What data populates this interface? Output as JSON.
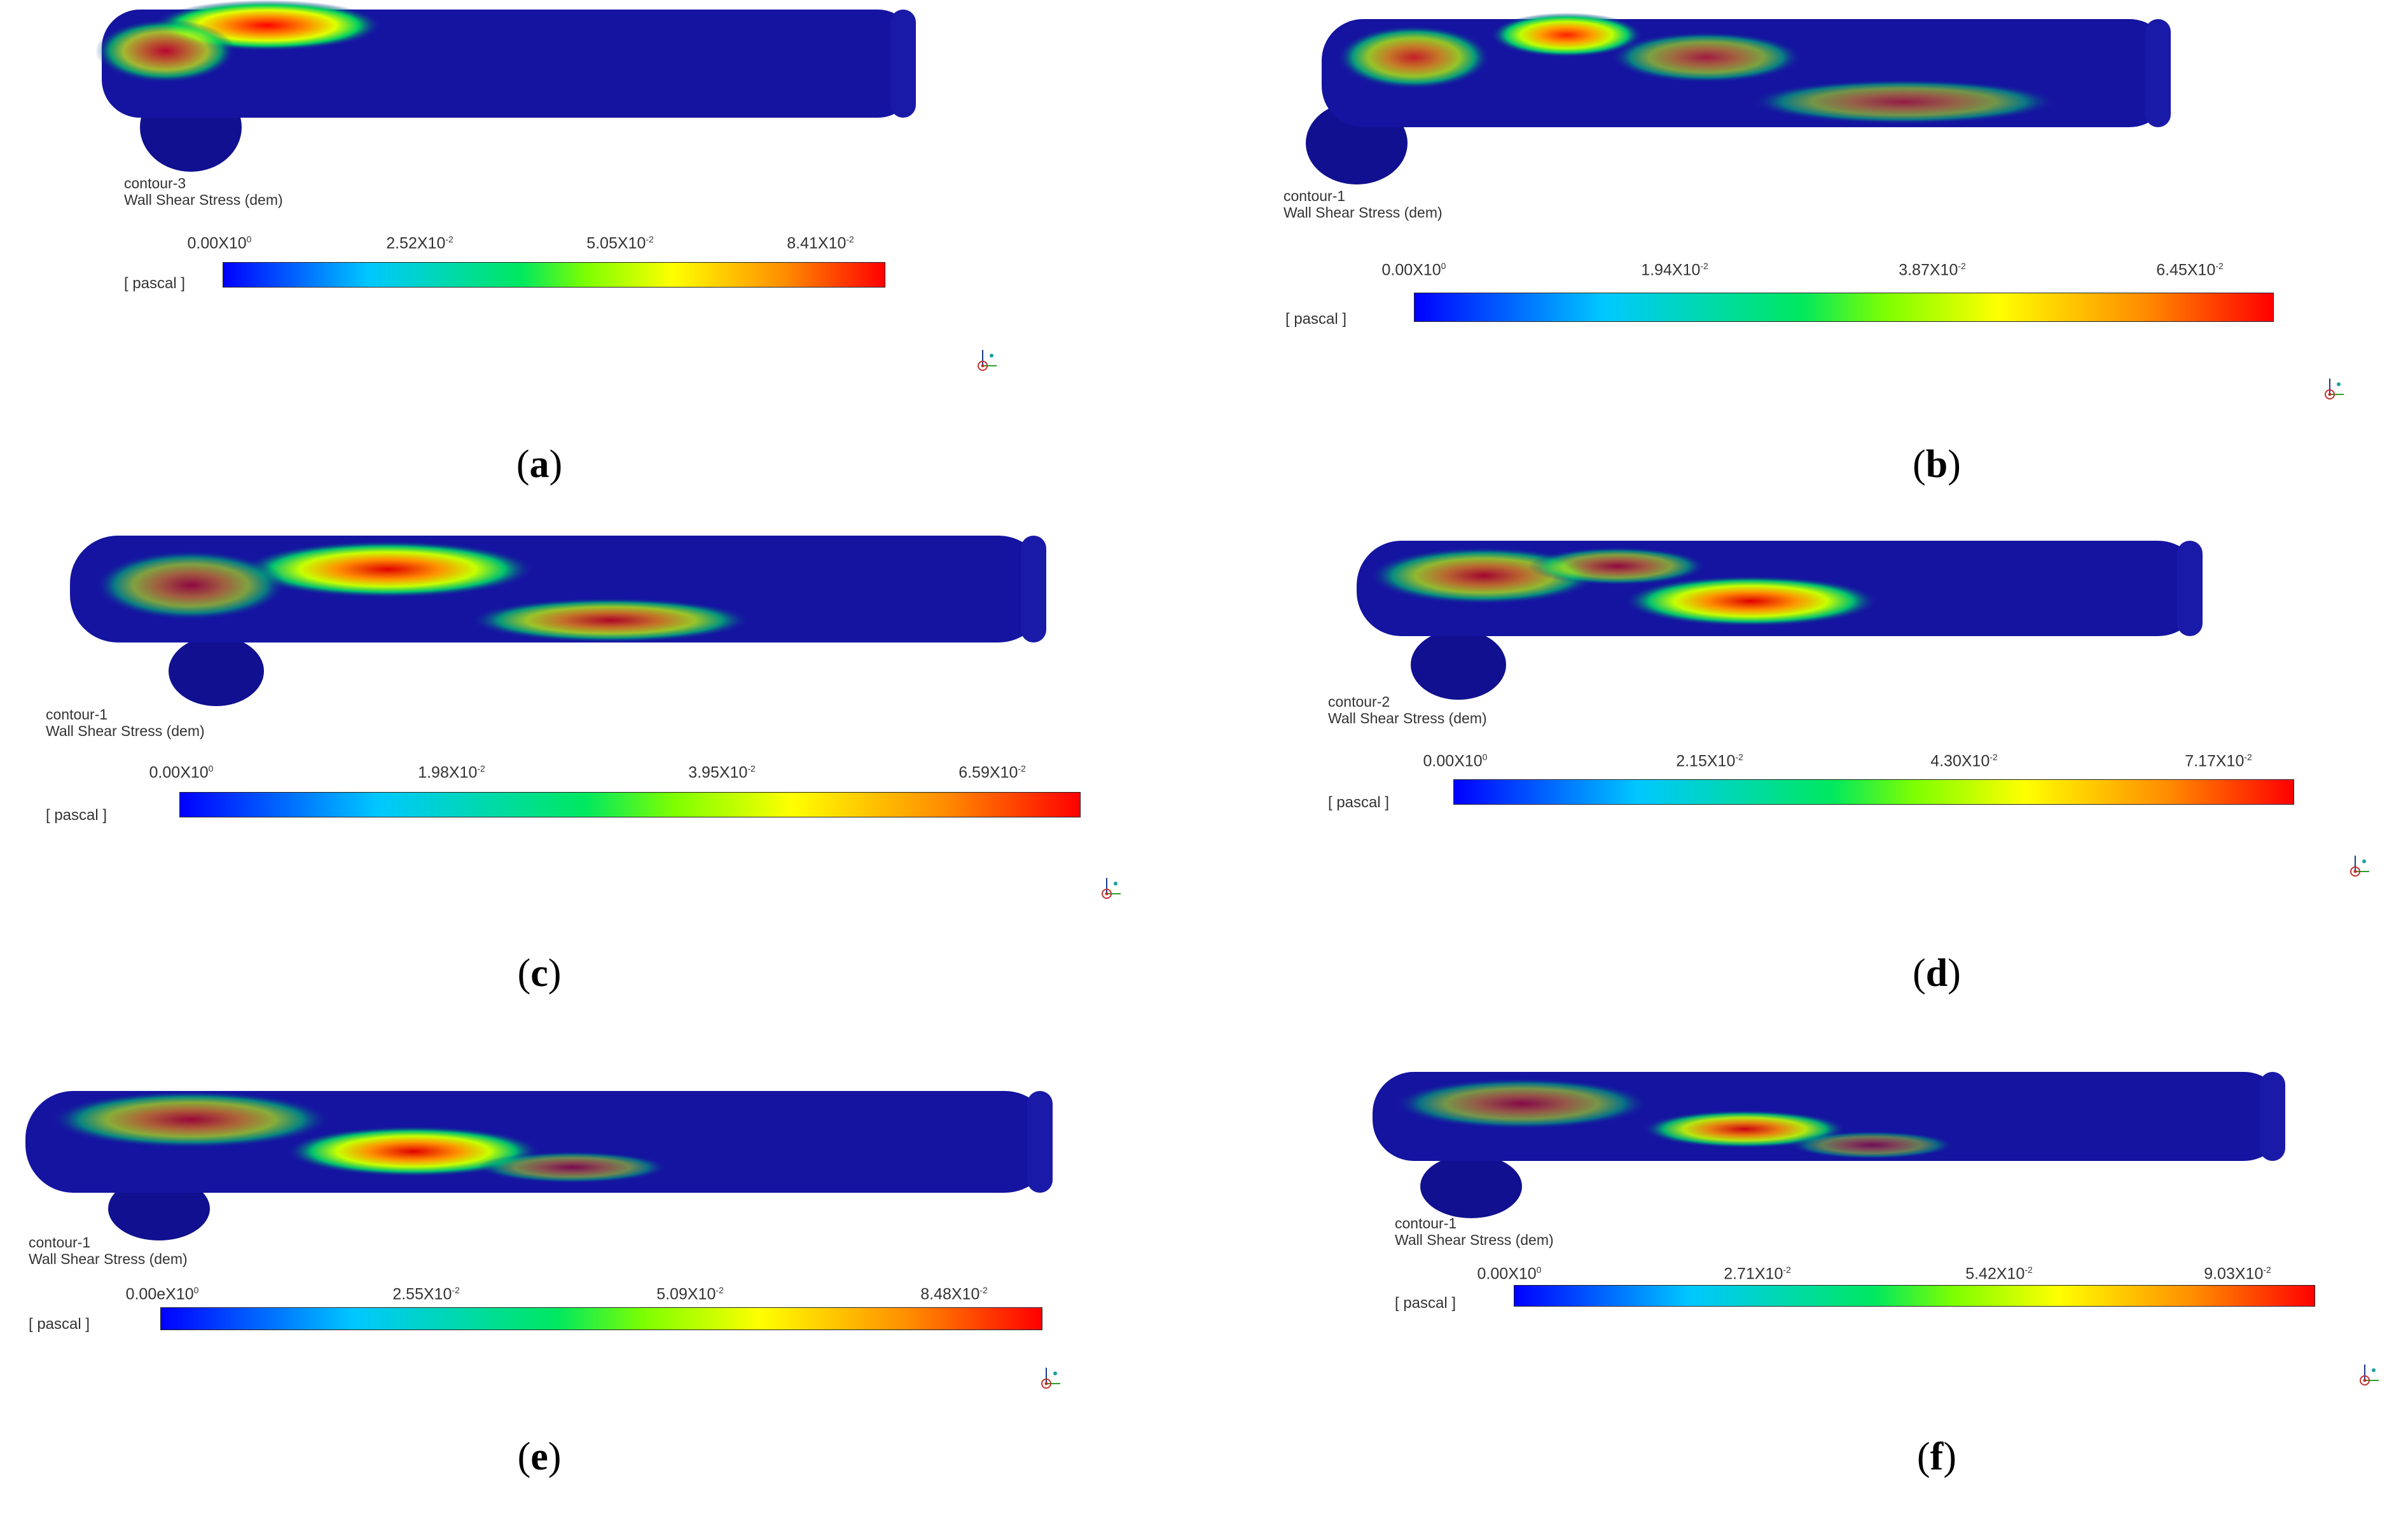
{
  "colors": {
    "pipe_base": "#1414a0",
    "legend_low": "#0000ff",
    "legend_high": "#ff0000"
  },
  "panels": [
    {
      "id": "a",
      "caption_letter": "a",
      "contour_name": "contour-3",
      "variable": "Wall Shear Stress (dem)",
      "unit": "[ pascal ]",
      "ticks": [
        {
          "mantissa": "0.00X10",
          "exp": "0"
        },
        {
          "mantissa": "2.52X10",
          "exp": "-2"
        },
        {
          "mantissa": "5.05X10",
          "exp": "-2"
        },
        {
          "mantissa": "8.41X10",
          "exp": "-2"
        }
      ]
    },
    {
      "id": "b",
      "caption_letter": "b",
      "contour_name": "contour-1",
      "variable": "Wall Shear Stress (dem)",
      "unit": "[ pascal ]",
      "ticks": [
        {
          "mantissa": "0.00X10",
          "exp": "0"
        },
        {
          "mantissa": "1.94X10",
          "exp": "-2"
        },
        {
          "mantissa": "3.87X10",
          "exp": "-2"
        },
        {
          "mantissa": "6.45X10",
          "exp": "-2"
        }
      ]
    },
    {
      "id": "c",
      "caption_letter": "c",
      "contour_name": "contour-1",
      "variable": "Wall Shear Stress (dem)",
      "unit": "[ pascal ]",
      "ticks": [
        {
          "mantissa": "0.00X10",
          "exp": "0"
        },
        {
          "mantissa": "1.98X10",
          "exp": "-2"
        },
        {
          "mantissa": "3.95X10",
          "exp": "-2"
        },
        {
          "mantissa": "6.59X10",
          "exp": "-2"
        }
      ]
    },
    {
      "id": "d",
      "caption_letter": "d",
      "contour_name": "contour-2",
      "variable": "Wall Shear Stress (dem)",
      "unit": "[ pascal ]",
      "ticks": [
        {
          "mantissa": "0.00X10",
          "exp": "0"
        },
        {
          "mantissa": "2.15X10",
          "exp": "-2"
        },
        {
          "mantissa": "4.30X10",
          "exp": "-2"
        },
        {
          "mantissa": "7.17X10",
          "exp": "-2"
        }
      ]
    },
    {
      "id": "e",
      "caption_letter": "e",
      "contour_name": "contour-1",
      "variable": "Wall Shear Stress (dem)",
      "unit": "[ pascal ]",
      "ticks": [
        {
          "mantissa": "0.00eX10",
          "exp": "0"
        },
        {
          "mantissa": "2.55X10",
          "exp": "-2"
        },
        {
          "mantissa": "5.09X10",
          "exp": "-2"
        },
        {
          "mantissa": "8.48X10",
          "exp": "-2"
        }
      ]
    },
    {
      "id": "f",
      "caption_letter": "f",
      "contour_name": "contour-1",
      "variable": "Wall Shear Stress (dem)",
      "unit": "[ pascal ]",
      "ticks": [
        {
          "mantissa": "0.00X10",
          "exp": "0"
        },
        {
          "mantissa": "2.71X10",
          "exp": "-2"
        },
        {
          "mantissa": "5.42X10",
          "exp": "-2"
        },
        {
          "mantissa": "9.03X10",
          "exp": "-2"
        }
      ]
    }
  ]
}
